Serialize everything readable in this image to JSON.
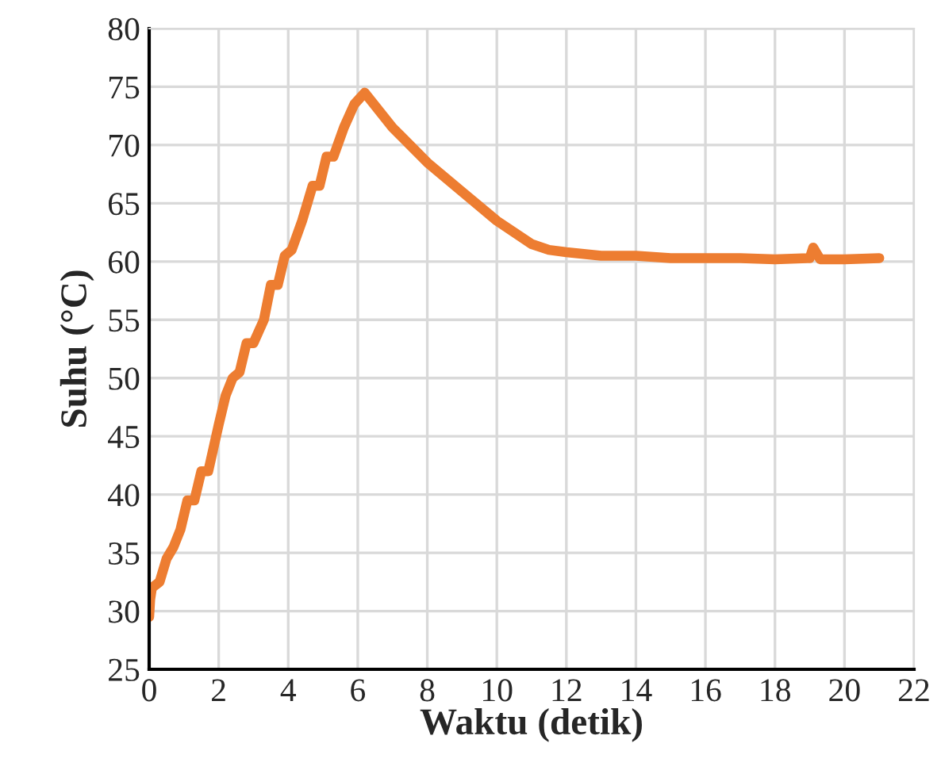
{
  "chart_data": {
    "type": "line",
    "xlabel": "Waktu (detik)",
    "ylabel": "Suhu (°C)",
    "series": [
      {
        "color": "#ed7d31",
        "x": [
          0,
          0.03,
          0.08,
          0.3,
          0.5,
          0.7,
          0.9,
          1.1,
          1.3,
          1.5,
          1.7,
          2.0,
          2.2,
          2.4,
          2.6,
          2.8,
          3.0,
          3.3,
          3.5,
          3.7,
          3.9,
          4.1,
          4.4,
          4.7,
          4.9,
          5.1,
          5.3,
          5.6,
          5.9,
          6.2,
          7,
          8,
          9,
          10,
          11,
          11.5,
          12,
          13,
          14,
          15,
          16,
          17,
          18,
          19,
          19.1,
          19.3,
          20,
          21
        ],
        "values": [
          29.5,
          31,
          32,
          32.5,
          34.5,
          35.5,
          37,
          39.5,
          39.5,
          42,
          42,
          46,
          48.5,
          50,
          50.5,
          53,
          53,
          55,
          58,
          58,
          60.5,
          61,
          63.5,
          66.5,
          66.5,
          69,
          69,
          71.5,
          73.5,
          74.5,
          71.5,
          68.5,
          66,
          63.5,
          61.5,
          61,
          60.8,
          60.5,
          60.5,
          60.3,
          60.3,
          60.3,
          60.2,
          60.3,
          61.2,
          60.2,
          60.2,
          60.3
        ]
      }
    ],
    "xlim": [
      0,
      22
    ],
    "xticks": [
      0,
      2,
      4,
      6,
      8,
      10,
      12,
      14,
      16,
      18,
      20,
      22
    ],
    "ylim": [
      25,
      80
    ],
    "yticks": [
      25,
      30,
      35,
      40,
      45,
      50,
      55,
      60,
      65,
      70,
      75,
      80
    ],
    "grid": true,
    "legend": false,
    "marker": "none",
    "line_style": "solid"
  }
}
